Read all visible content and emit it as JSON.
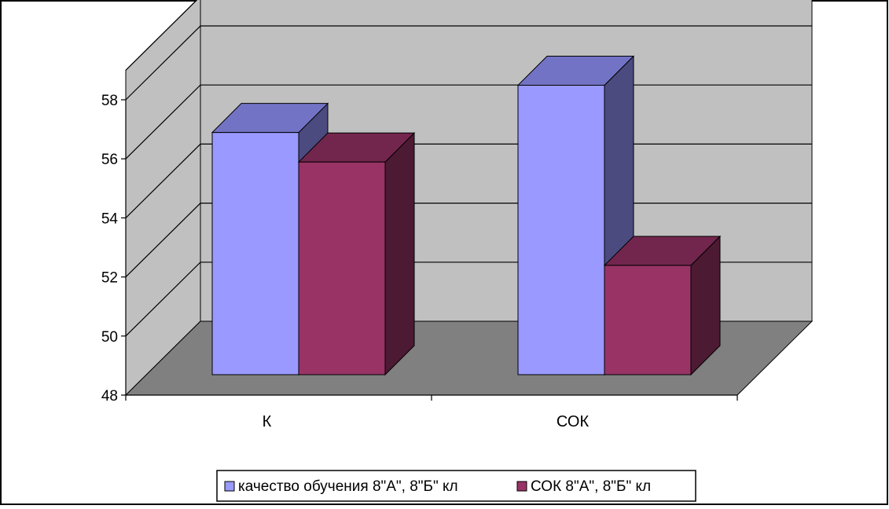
{
  "chart_data": {
    "type": "bar",
    "subtype": "3d-clustered-column",
    "categories": [
      "К",
      "СОК"
    ],
    "series": [
      {
        "name": "качество обучения 8\"А\", 8\"Б\" кл",
        "values": [
          56.2,
          57.8
        ]
      },
      {
        "name": "СОК 8\"А\", 8\"Б\" кл",
        "values": [
          55.2,
          51.7
        ]
      }
    ],
    "ylim": [
      48,
      58
    ],
    "yticks": [
      "48",
      "50",
      "52",
      "54",
      "56",
      "58"
    ],
    "xlabel": "",
    "ylabel": "",
    "title": "",
    "grid": true,
    "legend_position": "bottom"
  },
  "colors": {
    "series_1_front": "#9999ff",
    "series_1_top": "#7373c6",
    "series_1_side": "#4b4b80",
    "series_2_front": "#993366",
    "series_2_top": "#73264d",
    "series_2_side": "#4d1a33",
    "back_wall": "#c0c0c0",
    "floor": "#808080",
    "gridline": "#000000"
  }
}
